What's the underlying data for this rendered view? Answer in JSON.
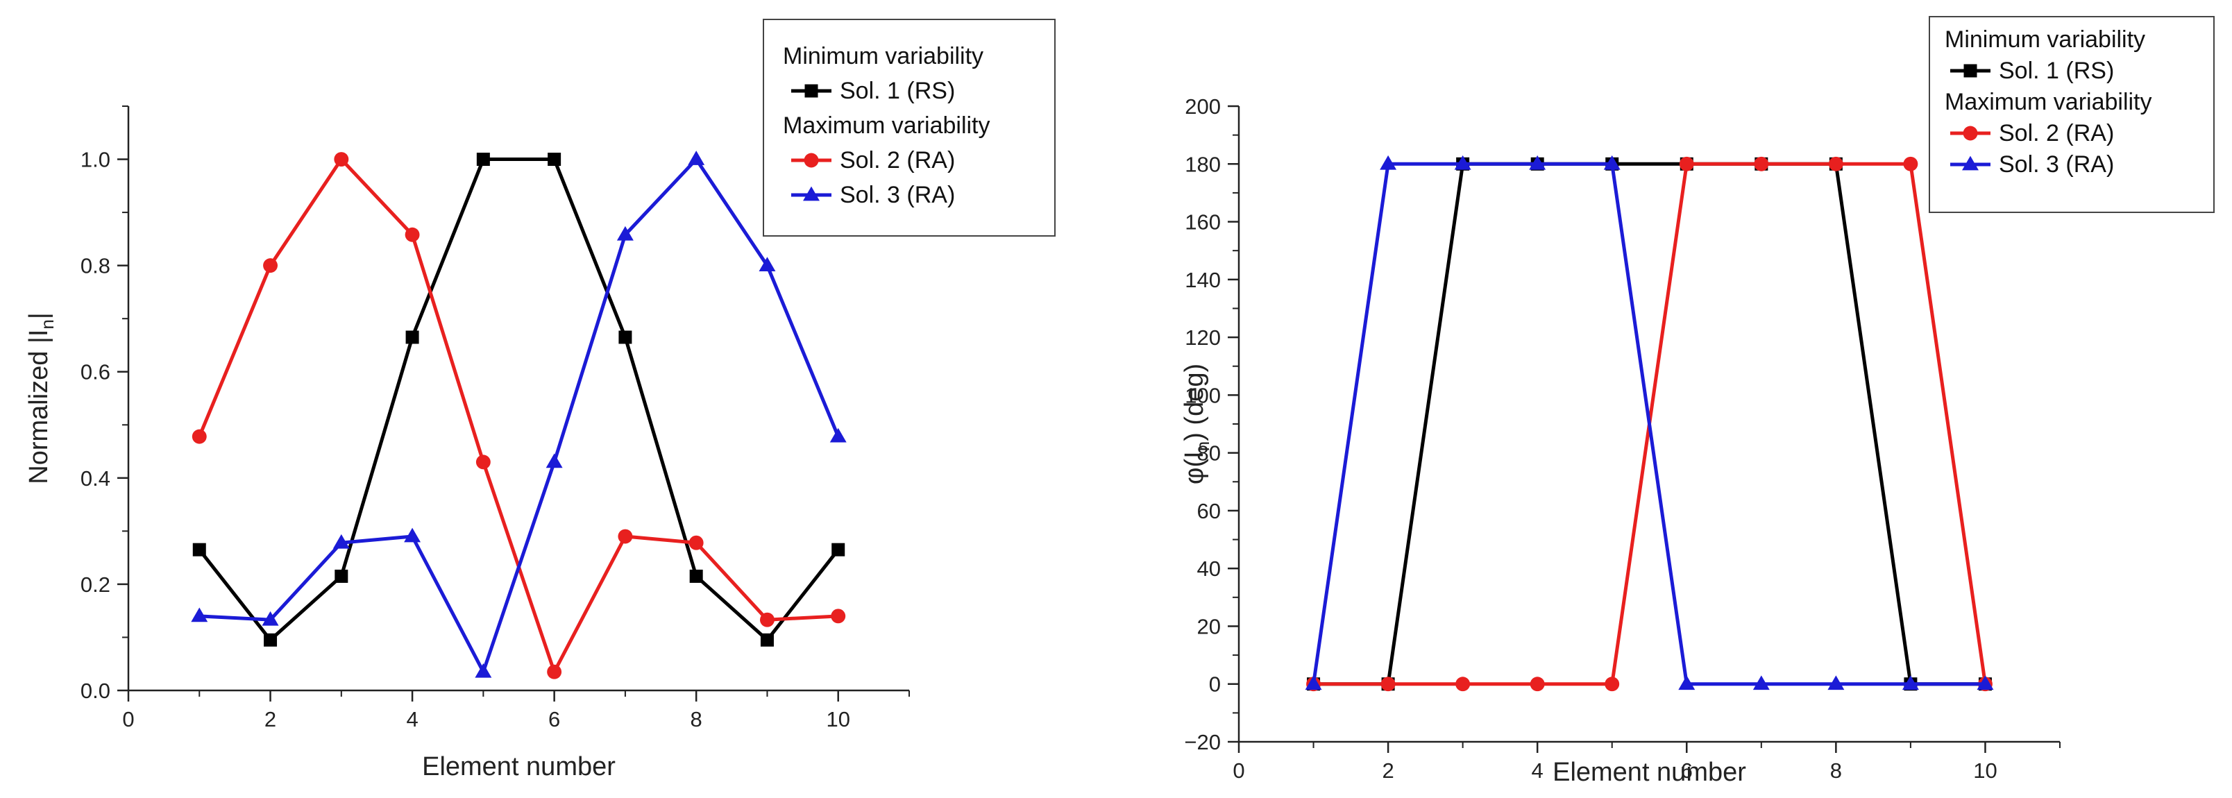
{
  "chart_data": [
    {
      "type": "line",
      "title": "",
      "xlabel": "Element number",
      "ylabel": "Normalized |I",
      "ylabel_subscript": "n",
      "ylabel_suffix": "|",
      "xlim": [
        0,
        11
      ],
      "ylim": [
        0,
        1.1
      ],
      "xticks": [
        0,
        2,
        4,
        6,
        8,
        10
      ],
      "xtick_labels": [
        "0",
        "2",
        "4",
        "6",
        "8",
        "10"
      ],
      "yticks": [
        0,
        0.2,
        0.4,
        0.6,
        0.8,
        1.0
      ],
      "ytick_labels": [
        "0.0",
        "0.2",
        "0.4",
        "0.6",
        "0.8",
        "1.0"
      ],
      "grid": false,
      "legend_position": "top-right",
      "legend_groups": [
        {
          "heading": "Minimum variability",
          "series": [
            0
          ]
        },
        {
          "heading": "Maximum variability",
          "series": [
            1,
            2
          ]
        }
      ],
      "x": [
        1,
        2,
        3,
        4,
        5,
        6,
        7,
        8,
        9,
        10
      ],
      "series": [
        {
          "name": "Sol. 1 (RS)",
          "color": "#000000",
          "marker": "square",
          "values": [
            0.265,
            0.095,
            0.215,
            0.665,
            1.0,
            1.0,
            0.665,
            0.215,
            0.095,
            0.265
          ]
        },
        {
          "name": "Sol. 2 (RA)",
          "color": "#e8201f",
          "marker": "circle",
          "values": [
            0.478,
            0.8,
            1.0,
            0.858,
            0.43,
            0.035,
            0.29,
            0.278,
            0.133,
            0.14
          ]
        },
        {
          "name": "Sol. 3 (RA)",
          "color": "#1b1bd6",
          "marker": "triangle",
          "values": [
            0.14,
            0.133,
            0.278,
            0.29,
            0.035,
            0.43,
            0.858,
            1.0,
            0.8,
            0.478
          ]
        }
      ]
    },
    {
      "type": "line",
      "title": "",
      "xlabel": "Element number",
      "ylabel": "φ(I",
      "ylabel_subscript": "n",
      "ylabel_suffix": ") (deg)",
      "xlim": [
        0,
        11
      ],
      "ylim": [
        -20,
        200
      ],
      "xticks": [
        0,
        2,
        4,
        6,
        8,
        10
      ],
      "xtick_labels": [
        "0",
        "2",
        "4",
        "6",
        "8",
        "10"
      ],
      "yticks": [
        -20,
        0,
        20,
        40,
        60,
        80,
        100,
        120,
        140,
        160,
        180,
        200
      ],
      "ytick_labels": [
        "−20",
        "0",
        "20",
        "40",
        "60",
        "80",
        "100",
        "120",
        "140",
        "160",
        "180",
        "200"
      ],
      "grid": false,
      "legend_position": "top-right",
      "legend_groups": [
        {
          "heading": "Minimum variability",
          "series": [
            0
          ]
        },
        {
          "heading": "Maximum variability",
          "series": [
            1,
            2
          ]
        }
      ],
      "x": [
        1,
        2,
        3,
        4,
        5,
        6,
        7,
        8,
        9,
        10
      ],
      "series": [
        {
          "name": "Sol. 1 (RS)",
          "color": "#000000",
          "marker": "square",
          "values": [
            0,
            0,
            180,
            180,
            180,
            180,
            180,
            180,
            0,
            0
          ]
        },
        {
          "name": "Sol. 2 (RA)",
          "color": "#e8201f",
          "marker": "circle",
          "values": [
            0,
            0,
            0,
            0,
            0,
            180,
            180,
            180,
            180,
            0
          ]
        },
        {
          "name": "Sol. 3 (RA)",
          "color": "#1b1bd6",
          "marker": "triangle",
          "values": [
            0,
            180,
            180,
            180,
            180,
            0,
            0,
            0,
            0,
            0
          ]
        }
      ]
    }
  ]
}
